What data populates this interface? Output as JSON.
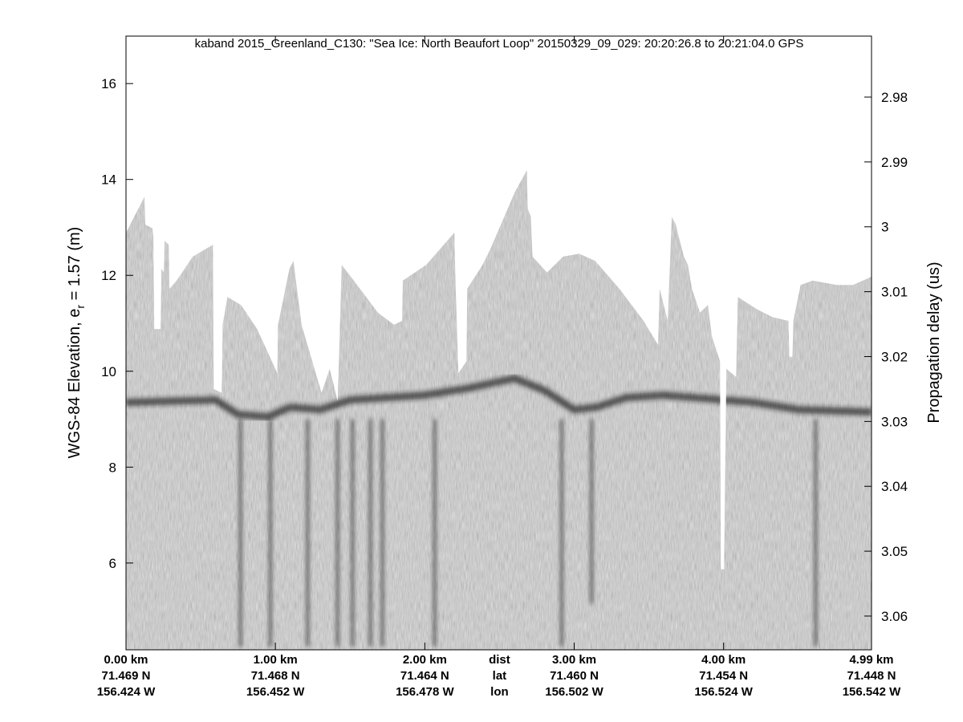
{
  "chart_data": {
    "type": "heatmap",
    "title": "kaband 2015_Greenland_C130: \"Sea Ice: North Beaufort Loop\"  20150329_09_029: 20:20:26.8 to 20:21:04.0 GPS",
    "ylabel": "WGS-84 Elevation, e",
    "ylabel_sub": "r",
    "ylabel_suffix": " = 1.57 (m)",
    "y2label": "Propagation delay (us)",
    "xlim_km": [
      0,
      4.99
    ],
    "ylim": [
      4.19,
      16.99
    ],
    "y2lim": [
      2.9706,
      3.0652
    ],
    "yticks": [
      6,
      8,
      10,
      12,
      14,
      16
    ],
    "y2ticks": [
      "2.98",
      "2.99",
      "3",
      "3.01",
      "3.02",
      "3.03",
      "3.04",
      "3.05",
      "3.06"
    ],
    "colormap": "gray",
    "x_ticks": [
      {
        "km": 0.0,
        "dist": "0.00 km",
        "lat": "71.469 N",
        "lon": "156.424 W"
      },
      {
        "km": 1.0,
        "dist": "1.00 km",
        "lat": "71.468 N",
        "lon": "156.452 W"
      },
      {
        "km": 2.0,
        "dist": "2.00 km",
        "lat": "71.464 N",
        "lon": "156.478 W"
      },
      {
        "km": 3.0,
        "dist": "3.00 km",
        "lat": "71.460 N",
        "lon": "156.502 W"
      },
      {
        "km": 4.0,
        "dist": "4.00 km",
        "lat": "71.454 N",
        "lon": "156.524 W"
      },
      {
        "km": 4.99,
        "dist": "4.99 km",
        "lat": "71.448 N",
        "lon": "156.542 W"
      }
    ],
    "x_row_labels": {
      "km": 2.5,
      "dist": "dist",
      "lat": "lat",
      "lon": "lon"
    },
    "data_top_elevation_m": [
      [
        0,
        12.89
      ],
      [
        0.124,
        13.64
      ],
      [
        0.129,
        13.06
      ],
      [
        0.178,
        12.98
      ],
      [
        0.183,
        12.81
      ],
      [
        0.189,
        10.88
      ],
      [
        0.232,
        10.88
      ],
      [
        0.237,
        12.14
      ],
      [
        0.253,
        12.06
      ],
      [
        0.259,
        12.72
      ],
      [
        0.286,
        12.64
      ],
      [
        0.291,
        11.72
      ],
      [
        0.339,
        11.89
      ],
      [
        0.447,
        12.39
      ],
      [
        0.582,
        12.64
      ],
      [
        0.587,
        9.63
      ],
      [
        0.641,
        9.55
      ],
      [
        0.647,
        10.97
      ],
      [
        0.679,
        11.55
      ],
      [
        0.77,
        11.38
      ],
      [
        0.878,
        10.88
      ],
      [
        1.013,
        9.96
      ],
      [
        1.018,
        10.97
      ],
      [
        1.094,
        12.14
      ],
      [
        1.121,
        12.3
      ],
      [
        1.175,
        10.97
      ],
      [
        1.309,
        9.55
      ],
      [
        1.363,
        10.05
      ],
      [
        1.417,
        9.38
      ],
      [
        1.444,
        12.22
      ],
      [
        1.525,
        11.89
      ],
      [
        1.686,
        11.22
      ],
      [
        1.794,
        10.97
      ],
      [
        1.848,
        11.05
      ],
      [
        1.853,
        11.89
      ],
      [
        2.01,
        12.22
      ],
      [
        2.198,
        12.89
      ],
      [
        2.204,
        12.06
      ],
      [
        2.225,
        9.96
      ],
      [
        2.279,
        10.21
      ],
      [
        2.284,
        11.72
      ],
      [
        2.387,
        12.22
      ],
      [
        2.441,
        12.56
      ],
      [
        2.602,
        13.73
      ],
      [
        2.683,
        14.19
      ],
      [
        2.689,
        13.39
      ],
      [
        2.71,
        13.22
      ],
      [
        2.721,
        12.39
      ],
      [
        2.818,
        12.06
      ],
      [
        2.926,
        12.39
      ],
      [
        3.033,
        12.45
      ],
      [
        3.141,
        12.3
      ],
      [
        3.303,
        11.72
      ],
      [
        3.464,
        11.05
      ],
      [
        3.561,
        10.55
      ],
      [
        3.572,
        11.72
      ],
      [
        3.626,
        11.05
      ],
      [
        3.653,
        13.22
      ],
      [
        3.68,
        13.06
      ],
      [
        3.707,
        12.72
      ],
      [
        3.734,
        12.39
      ],
      [
        3.761,
        12.22
      ],
      [
        3.788,
        11.72
      ],
      [
        3.842,
        11.22
      ],
      [
        3.895,
        11.38
      ],
      [
        3.922,
        10.72
      ],
      [
        3.976,
        10.21
      ],
      [
        3.982,
        5.87
      ],
      [
        4.003,
        5.87
      ],
      [
        4.019,
        10.05
      ],
      [
        4.084,
        9.88
      ],
      [
        4.095,
        11.55
      ],
      [
        4.219,
        11.3
      ],
      [
        4.327,
        11.13
      ],
      [
        4.434,
        11.05
      ],
      [
        4.44,
        10.3
      ],
      [
        4.461,
        10.3
      ],
      [
        4.467,
        11.05
      ],
      [
        4.515,
        11.8
      ],
      [
        4.596,
        11.89
      ],
      [
        4.758,
        11.8
      ],
      [
        4.865,
        11.8
      ],
      [
        4.99,
        11.97
      ]
    ],
    "ice_layer_elevation_m": [
      [
        0,
        9.35
      ],
      [
        0.6,
        9.4
      ],
      [
        0.75,
        9.1
      ],
      [
        0.95,
        9.05
      ],
      [
        1.1,
        9.25
      ],
      [
        1.3,
        9.2
      ],
      [
        1.5,
        9.4
      ],
      [
        2.0,
        9.5
      ],
      [
        2.3,
        9.65
      ],
      [
        2.6,
        9.85
      ],
      [
        2.8,
        9.6
      ],
      [
        3.0,
        9.2
      ],
      [
        3.15,
        9.25
      ],
      [
        3.35,
        9.45
      ],
      [
        3.6,
        9.5
      ],
      [
        4.2,
        9.35
      ],
      [
        4.5,
        9.2
      ],
      [
        4.99,
        9.15
      ]
    ]
  }
}
